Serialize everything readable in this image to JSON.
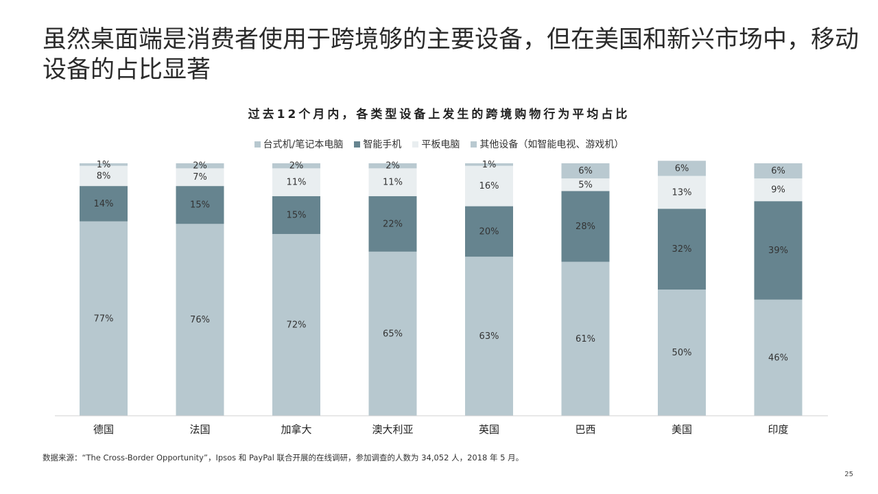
{
  "headline": "虽然桌面端是消费者使用于跨境够的主要设备，但在美国和新兴市场中，移动设备的占比显著",
  "footer": {
    "source": "数据来源：“The Cross-Border Opportunity”，Ipsos 和 PayPal 联合开展的在线调研，参加调查的人数为 34,052 人，2018 年 5 月。",
    "page_number": "25"
  },
  "chart_data": {
    "type": "bar",
    "stacked": true,
    "title": "过去12个月内，各类型设备上发生的跨境购物行为平均占比",
    "categories": [
      "德国",
      "法国",
      "加拿大",
      "澳大利亚",
      "英国",
      "巴西",
      "美国",
      "印度"
    ],
    "series": [
      {
        "name": "台式机/笔记本电脑",
        "color": "#b7c8cf",
        "values": [
          77,
          76,
          72,
          65,
          63,
          61,
          50,
          46
        ]
      },
      {
        "name": "智能手机",
        "color": "#66848f",
        "values": [
          14,
          15,
          15,
          22,
          20,
          28,
          32,
          39
        ]
      },
      {
        "name": "平板电脑",
        "color": "#e9eef0",
        "values": [
          8,
          7,
          11,
          11,
          16,
          5,
          13,
          9
        ]
      },
      {
        "name": "其他设备（如智能电视、游戏机）",
        "color": "#b9c9d0",
        "values": [
          1,
          2,
          2,
          2,
          1,
          6,
          6,
          6
        ]
      }
    ],
    "value_suffix": "%",
    "ylim": [
      0,
      100
    ],
    "legend_position": "top-center",
    "grid": false
  }
}
